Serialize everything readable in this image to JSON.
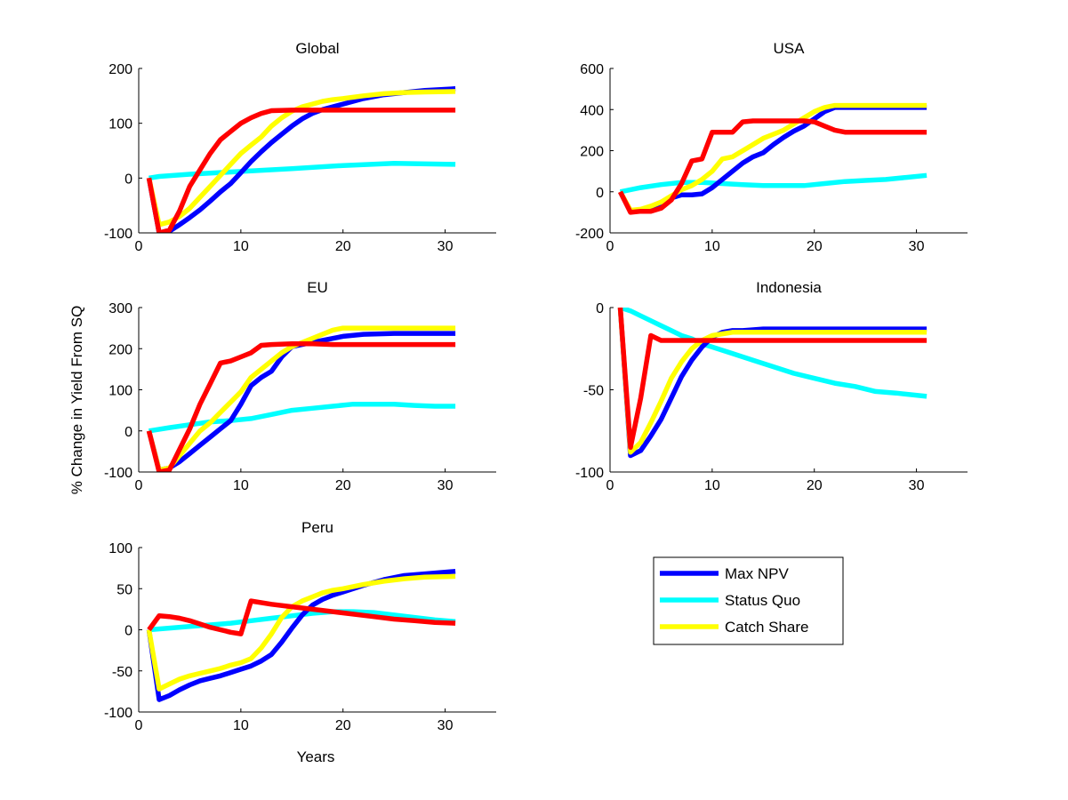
{
  "ylabel": "% Change in Yield From SQ",
  "xlabel": "Years",
  "colors": {
    "Max NPV": "#0000ff",
    "Status Quo": "#00ffff",
    "Catch Share": "#ffff00",
    "red": "#ff0000"
  },
  "legend": [
    "Max NPV",
    "Status Quo",
    "Catch Share"
  ],
  "chart_data": [
    {
      "type": "line",
      "title": "Global",
      "xlim": [
        0,
        35
      ],
      "ylim": [
        -100,
        200
      ],
      "xticks": [
        0,
        10,
        20,
        30
      ],
      "yticks": [
        -100,
        0,
        100,
        200
      ],
      "series": [
        {
          "name": "Status Quo",
          "x": [
            1,
            2,
            5,
            10,
            15,
            20,
            25,
            31
          ],
          "y": [
            0,
            3,
            7,
            12,
            17,
            23,
            27,
            25
          ]
        },
        {
          "name": "Max NPV",
          "x": [
            1,
            2,
            3,
            4,
            5,
            6,
            7,
            8,
            9,
            10,
            11,
            12,
            13,
            14,
            15,
            16,
            17,
            18,
            19,
            20,
            22,
            24,
            26,
            28,
            31
          ],
          "y": [
            0,
            -100,
            -97,
            -85,
            -72,
            -58,
            -42,
            -25,
            -10,
            10,
            30,
            48,
            65,
            80,
            95,
            108,
            118,
            125,
            130,
            135,
            145,
            152,
            156,
            160,
            163
          ]
        },
        {
          "name": "Catch Share",
          "x": [
            1,
            2,
            3,
            4,
            5,
            6,
            7,
            8,
            9,
            10,
            11,
            12,
            13,
            14,
            15,
            16,
            17,
            18,
            19,
            20,
            22,
            24,
            26,
            28,
            31
          ],
          "y": [
            0,
            -85,
            -80,
            -70,
            -55,
            -35,
            -15,
            5,
            25,
            45,
            60,
            75,
            95,
            110,
            122,
            130,
            135,
            140,
            143,
            145,
            150,
            154,
            156,
            157,
            158
          ]
        },
        {
          "x": [
            1,
            2,
            3,
            4,
            5,
            6,
            7,
            8,
            9,
            10,
            11,
            12,
            13,
            15,
            17,
            20,
            25,
            31
          ],
          "y": [
            0,
            -100,
            -95,
            -60,
            -15,
            15,
            45,
            70,
            85,
            100,
            110,
            118,
            123,
            124,
            124,
            124,
            124,
            124
          ]
        }
      ]
    },
    {
      "type": "line",
      "title": "USA",
      "xlim": [
        0,
        35
      ],
      "ylim": [
        -200,
        600
      ],
      "xticks": [
        0,
        10,
        20,
        30
      ],
      "yticks": [
        -200,
        0,
        200,
        400,
        600
      ],
      "series": [
        {
          "name": "Status Quo",
          "x": [
            1,
            3,
            5,
            7,
            9,
            11,
            13,
            15,
            17,
            19,
            21,
            23,
            25,
            27,
            29,
            31
          ],
          "y": [
            0,
            20,
            35,
            45,
            45,
            40,
            35,
            30,
            30,
            30,
            40,
            50,
            55,
            60,
            70,
            80
          ]
        },
        {
          "name": "Max NPV",
          "x": [
            1,
            2,
            3,
            4,
            5,
            6,
            7,
            8,
            9,
            10,
            11,
            12,
            13,
            14,
            15,
            16,
            17,
            18,
            19,
            20,
            21,
            22,
            25,
            31
          ],
          "y": [
            0,
            -95,
            -90,
            -80,
            -55,
            -30,
            -15,
            -15,
            -10,
            20,
            60,
            100,
            140,
            170,
            190,
            230,
            265,
            295,
            320,
            355,
            390,
            410,
            410,
            410
          ]
        },
        {
          "name": "Catch Share",
          "x": [
            1,
            2,
            3,
            4,
            5,
            6,
            7,
            8,
            9,
            10,
            11,
            12,
            13,
            14,
            15,
            16,
            17,
            18,
            19,
            20,
            21,
            22,
            25,
            31
          ],
          "y": [
            0,
            -90,
            -85,
            -70,
            -50,
            -20,
            10,
            30,
            60,
            100,
            160,
            170,
            200,
            230,
            260,
            280,
            300,
            330,
            360,
            390,
            410,
            420,
            420,
            420
          ]
        },
        {
          "x": [
            1,
            2,
            3,
            4,
            5,
            6,
            7,
            8,
            9,
            10,
            11,
            12,
            13,
            14,
            15,
            16,
            17,
            18,
            19,
            20,
            21,
            22,
            23,
            25,
            31
          ],
          "y": [
            0,
            -100,
            -95,
            -95,
            -80,
            -40,
            40,
            150,
            160,
            290,
            290,
            290,
            340,
            345,
            345,
            345,
            345,
            345,
            345,
            340,
            320,
            300,
            290,
            290,
            290
          ]
        }
      ]
    },
    {
      "type": "line",
      "title": "EU",
      "xlim": [
        0,
        35
      ],
      "ylim": [
        -100,
        300
      ],
      "xticks": [
        0,
        10,
        20,
        30
      ],
      "yticks": [
        -100,
        0,
        100,
        200,
        300
      ],
      "series": [
        {
          "name": "Status Quo",
          "x": [
            1,
            3,
            5,
            7,
            9,
            11,
            13,
            15,
            17,
            19,
            21,
            23,
            25,
            27,
            29,
            31
          ],
          "y": [
            0,
            8,
            15,
            22,
            25,
            30,
            40,
            50,
            55,
            60,
            65,
            65,
            65,
            62,
            60,
            60
          ]
        },
        {
          "name": "Max NPV",
          "x": [
            1,
            2,
            3,
            4,
            5,
            6,
            7,
            8,
            9,
            10,
            11,
            12,
            13,
            14,
            15,
            16,
            17,
            18,
            19,
            20,
            22,
            25,
            31
          ],
          "y": [
            0,
            -95,
            -90,
            -75,
            -55,
            -35,
            -15,
            5,
            25,
            65,
            110,
            130,
            145,
            180,
            205,
            210,
            215,
            220,
            225,
            230,
            235,
            237,
            237
          ]
        },
        {
          "name": "Catch Share",
          "x": [
            1,
            2,
            3,
            4,
            5,
            6,
            7,
            8,
            9,
            10,
            11,
            12,
            13,
            14,
            15,
            16,
            17,
            18,
            19,
            20,
            22,
            25,
            31
          ],
          "y": [
            0,
            -95,
            -90,
            -60,
            -30,
            0,
            20,
            45,
            70,
            95,
            130,
            150,
            170,
            190,
            205,
            215,
            225,
            235,
            245,
            250,
            250,
            250,
            250
          ]
        },
        {
          "x": [
            1,
            2,
            3,
            4,
            5,
            6,
            7,
            8,
            9,
            10,
            11,
            12,
            13,
            15,
            17,
            19,
            20,
            25,
            31
          ],
          "y": [
            0,
            -100,
            -95,
            -45,
            5,
            65,
            115,
            165,
            170,
            180,
            190,
            208,
            210,
            212,
            212,
            210,
            210,
            210,
            210
          ]
        }
      ]
    },
    {
      "type": "line",
      "title": "Indonesia",
      "xlim": [
        0,
        35
      ],
      "ylim": [
        -100,
        0
      ],
      "xticks": [
        0,
        10,
        20,
        30
      ],
      "yticks": [
        -100,
        -50,
        0
      ],
      "series": [
        {
          "name": "Status Quo",
          "x": [
            1,
            2,
            3,
            4,
            5,
            6,
            7,
            8,
            9,
            10,
            12,
            14,
            16,
            18,
            20,
            22,
            24,
            26,
            28,
            31
          ],
          "y": [
            0,
            -2,
            -5,
            -8,
            -11,
            -14,
            -17,
            -19,
            -22,
            -24,
            -28,
            -32,
            -36,
            -40,
            -43,
            -46,
            -48,
            -51,
            -52,
            -54
          ]
        },
        {
          "name": "Max NPV",
          "x": [
            1,
            2,
            3,
            4,
            5,
            6,
            7,
            8,
            9,
            10,
            11,
            12,
            13,
            15,
            20,
            25,
            31
          ],
          "y": [
            0,
            -90,
            -87,
            -78,
            -68,
            -55,
            -42,
            -32,
            -24,
            -18,
            -15,
            -14,
            -14,
            -13,
            -13,
            -13,
            -13
          ]
        },
        {
          "name": "Catch Share",
          "x": [
            1,
            2,
            3,
            4,
            5,
            6,
            7,
            8,
            9,
            10,
            11,
            12,
            13,
            15,
            20,
            25,
            31
          ],
          "y": [
            0,
            -88,
            -82,
            -70,
            -57,
            -43,
            -33,
            -25,
            -20,
            -17,
            -16,
            -15,
            -15,
            -15,
            -15,
            -15,
            -15
          ]
        },
        {
          "x": [
            1,
            2,
            3,
            4,
            5,
            6,
            8,
            10,
            15,
            20,
            25,
            31
          ],
          "y": [
            0,
            -85,
            -55,
            -17,
            -20,
            -20,
            -20,
            -20,
            -20,
            -20,
            -20,
            -20
          ]
        }
      ]
    },
    {
      "type": "line",
      "title": "Peru",
      "xlim": [
        0,
        35
      ],
      "ylim": [
        -100,
        100
      ],
      "xticks": [
        0,
        10,
        20,
        30
      ],
      "yticks": [
        -100,
        -50,
        0,
        50,
        100
      ],
      "series": [
        {
          "name": "Status Quo",
          "x": [
            1,
            3,
            5,
            7,
            9,
            11,
            13,
            15,
            17,
            19,
            21,
            23,
            25,
            27,
            29,
            31
          ],
          "y": [
            0,
            2,
            4,
            6,
            8,
            11,
            14,
            17,
            20,
            22,
            22,
            21,
            18,
            15,
            12,
            10
          ]
        },
        {
          "name": "Max NPV",
          "x": [
            1,
            2,
            3,
            4,
            5,
            6,
            7,
            8,
            9,
            10,
            11,
            12,
            13,
            14,
            15,
            16,
            17,
            18,
            19,
            20,
            22,
            24,
            26,
            28,
            31
          ],
          "y": [
            0,
            -85,
            -80,
            -73,
            -67,
            -62,
            -59,
            -56,
            -52,
            -48,
            -44,
            -38,
            -30,
            -15,
            2,
            18,
            30,
            37,
            42,
            46,
            54,
            61,
            66,
            68,
            71
          ]
        },
        {
          "name": "Catch Share",
          "x": [
            1,
            2,
            3,
            4,
            5,
            6,
            7,
            8,
            9,
            10,
            11,
            12,
            13,
            14,
            15,
            16,
            17,
            18,
            19,
            20,
            22,
            24,
            26,
            28,
            31
          ],
          "y": [
            0,
            -72,
            -66,
            -60,
            -56,
            -53,
            -50,
            -47,
            -43,
            -40,
            -35,
            -22,
            -5,
            15,
            28,
            35,
            40,
            45,
            48,
            50,
            55,
            59,
            62,
            64,
            65
          ]
        },
        {
          "x": [
            1,
            2,
            3,
            4,
            5,
            6,
            7,
            8,
            9,
            10,
            11,
            13,
            15,
            17,
            19,
            21,
            23,
            25,
            27,
            29,
            31
          ],
          "y": [
            0,
            17,
            16,
            14,
            11,
            7,
            3,
            0,
            -3,
            -5,
            35,
            31,
            28,
            25,
            22,
            19,
            16,
            13,
            11,
            9,
            8
          ]
        }
      ]
    }
  ]
}
